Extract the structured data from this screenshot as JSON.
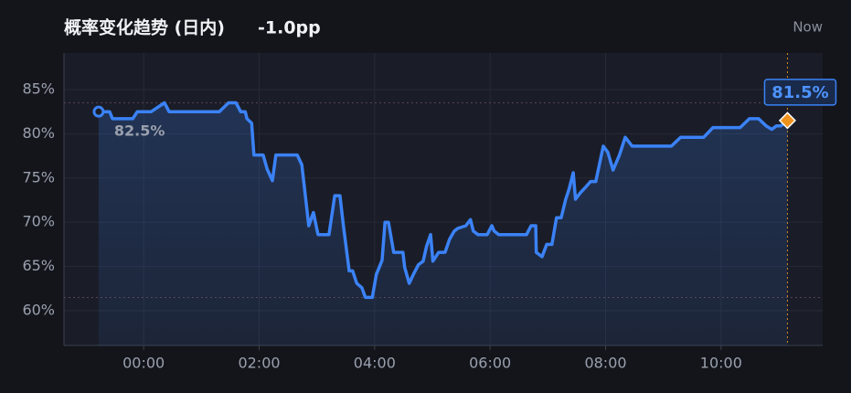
{
  "chart_data": {
    "type": "line",
    "title": "概率变化趋势 (日内)",
    "change": "-1.0pp",
    "now_label": "Now",
    "x": [
      -0.78,
      -0.66,
      -0.59,
      -0.54,
      -0.19,
      -0.11,
      0.13,
      0.36,
      0.44,
      1.31,
      1.47,
      1.6,
      1.68,
      1.76,
      1.79,
      1.87,
      1.91,
      2.07,
      2.14,
      2.23,
      2.29,
      2.66,
      2.74,
      2.86,
      2.94,
      3.02,
      3.21,
      3.31,
      3.4,
      3.46,
      3.56,
      3.62,
      3.69,
      3.78,
      3.84,
      3.96,
      4.03,
      4.13,
      4.18,
      4.24,
      4.33,
      4.49,
      4.52,
      4.6,
      4.67,
      4.76,
      4.84,
      4.9,
      4.97,
      5.01,
      5.11,
      5.22,
      5.3,
      5.38,
      5.44,
      5.58,
      5.66,
      5.71,
      5.79,
      5.87,
      5.95,
      6.03,
      6.07,
      6.15,
      6.63,
      6.71,
      6.79,
      6.8,
      6.9,
      6.98,
      7.07,
      7.15,
      7.23,
      7.31,
      7.37,
      7.44,
      7.48,
      7.56,
      7.66,
      7.74,
      7.83,
      7.96,
      8.04,
      8.13,
      8.24,
      8.34,
      8.46,
      9.14,
      9.3,
      9.7,
      9.86,
      10.33,
      10.49,
      10.65,
      10.78,
      10.88,
      10.96,
      11.04,
      11.15
    ],
    "series": [
      {
        "color": "#3b82f6",
        "values": [
          82.5,
          82.5,
          82.5,
          81.7,
          81.7,
          82.5,
          82.5,
          83.5,
          82.5,
          82.5,
          83.5,
          83.5,
          82.5,
          82.5,
          81.7,
          81.2,
          77.6,
          77.6,
          76.0,
          74.7,
          77.6,
          77.6,
          76.5,
          69.6,
          71.1,
          68.6,
          68.6,
          73.0,
          73.0,
          69.6,
          64.5,
          64.5,
          63.1,
          62.6,
          61.5,
          61.5,
          64.1,
          65.7,
          70.0,
          70.0,
          66.6,
          66.6,
          64.9,
          63.1,
          64.1,
          65.2,
          65.6,
          67.3,
          68.6,
          65.6,
          66.6,
          66.6,
          68.1,
          69.0,
          69.3,
          69.6,
          70.3,
          69.0,
          68.6,
          68.6,
          68.6,
          69.6,
          69.0,
          68.6,
          68.6,
          69.6,
          69.6,
          66.6,
          66.1,
          67.5,
          67.5,
          70.5,
          70.5,
          72.6,
          73.8,
          75.6,
          72.6,
          73.3,
          74.0,
          74.6,
          74.6,
          78.6,
          77.9,
          75.9,
          77.6,
          79.6,
          78.6,
          78.6,
          79.6,
          79.6,
          80.7,
          80.7,
          81.7,
          81.7,
          80.9,
          80.5,
          80.9,
          80.9,
          81.5
        ]
      }
    ],
    "start_label": {
      "value": 82.5,
      "label": "82.5%"
    },
    "end_label": {
      "value": 81.5,
      "label": "81.5%"
    },
    "high": 83.5,
    "low": 61.5,
    "now_x": 11.15,
    "xlim": [
      -1.38,
      11.76
    ],
    "ylim": [
      56.07,
      89.13
    ],
    "xticks": [
      {
        "value": 0,
        "label": "00:00"
      },
      {
        "value": 2,
        "label": "02:00"
      },
      {
        "value": 4,
        "label": "04:00"
      },
      {
        "value": 6,
        "label": "06:00"
      },
      {
        "value": 8,
        "label": "08:00"
      },
      {
        "value": 10,
        "label": "10:00"
      }
    ],
    "yticks": [
      {
        "value": 60,
        "label": "60%"
      },
      {
        "value": 65,
        "label": "65%"
      },
      {
        "value": 70,
        "label": "70%"
      },
      {
        "value": 75,
        "label": "75%"
      },
      {
        "value": 80,
        "label": "80%"
      },
      {
        "value": 85,
        "label": "85%"
      }
    ],
    "grid": true
  }
}
